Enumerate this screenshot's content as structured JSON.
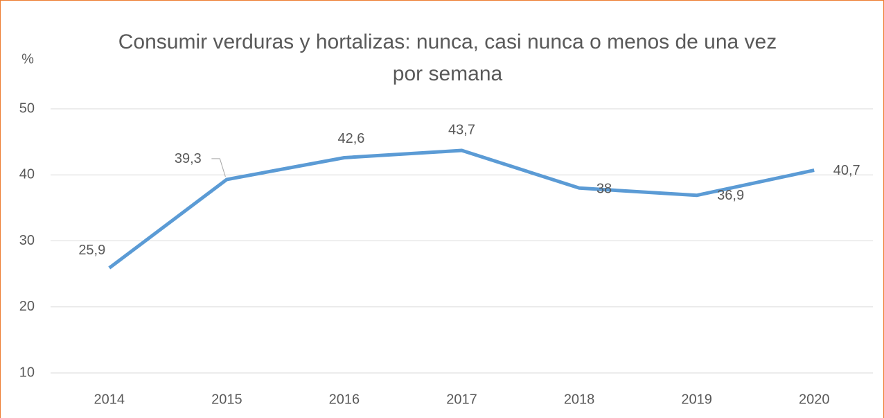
{
  "chart_data": {
    "type": "line",
    "title": "Consumir verduras y hortalizas: nunca, casi nunca o menos de una vez por semana",
    "y_label": "%",
    "categories": [
      "2014",
      "2015",
      "2016",
      "2017",
      "2018",
      "2019",
      "2020"
    ],
    "series": [
      {
        "name": "Consumir verduras y hortalizas",
        "color": "#5b9bd5",
        "values": [
          25.9,
          39.3,
          42.6,
          43.7,
          38,
          36.9,
          40.7
        ],
        "value_labels": [
          "25,9",
          "39,3",
          "42,6",
          "43,7",
          "38",
          "36,9",
          "40,7"
        ]
      }
    ],
    "ylim": [
      10,
      50
    ],
    "yticks": [
      10,
      20,
      30,
      40,
      50
    ],
    "grid": true
  }
}
